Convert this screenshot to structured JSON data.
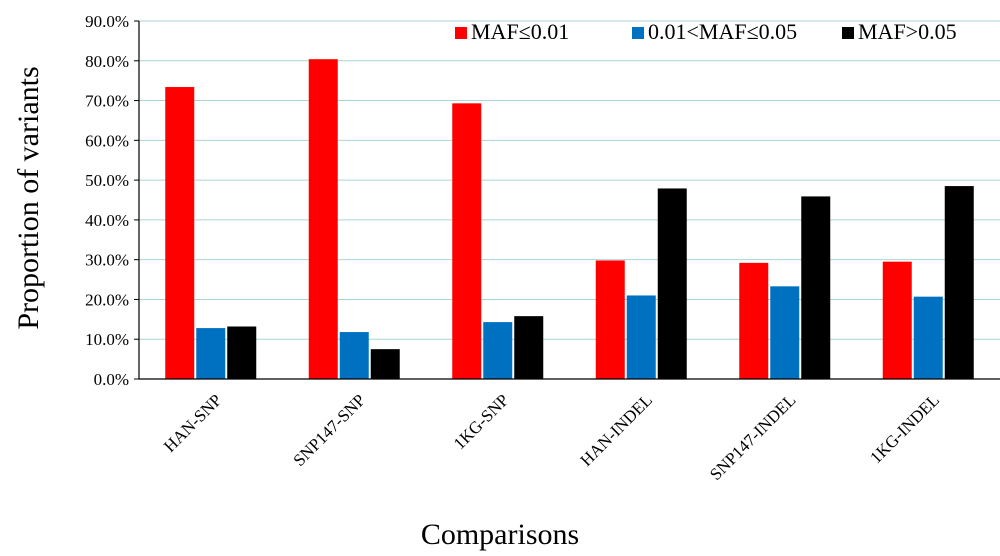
{
  "chart_data": {
    "type": "bar",
    "title": "",
    "xlabel": "Comparisons",
    "ylabel": "Proportion of variants",
    "ylim": [
      0,
      90
    ],
    "yticks": [
      0,
      10,
      20,
      30,
      40,
      50,
      60,
      70,
      80,
      90
    ],
    "ytick_labels": [
      "0.0%",
      "10.0%",
      "20.0%",
      "30.0%",
      "40.0%",
      "50.0%",
      "60.0%",
      "70.0%",
      "80.0%",
      "90.0%"
    ],
    "grid": true,
    "legend_position": "top-right",
    "categories": [
      "HAN-SNP",
      "SNP147-SNP",
      "1KG-SNP",
      "HAN-INDEL",
      "SNP147-INDEL",
      "1KG-INDEL"
    ],
    "series": [
      {
        "name": "MAF≤0.01",
        "color": "#ff0000",
        "values": [
          73.4,
          80.4,
          69.3,
          29.8,
          29.2,
          29.5
        ]
      },
      {
        "name": "0.01<MAF≤0.05",
        "color": "#0070c0",
        "values": [
          12.8,
          11.8,
          14.3,
          21.0,
          23.3,
          20.7
        ]
      },
      {
        "name": "MAF>0.05",
        "color": "#000000",
        "values": [
          13.2,
          7.5,
          15.8,
          47.9,
          45.9,
          48.5
        ]
      }
    ]
  }
}
